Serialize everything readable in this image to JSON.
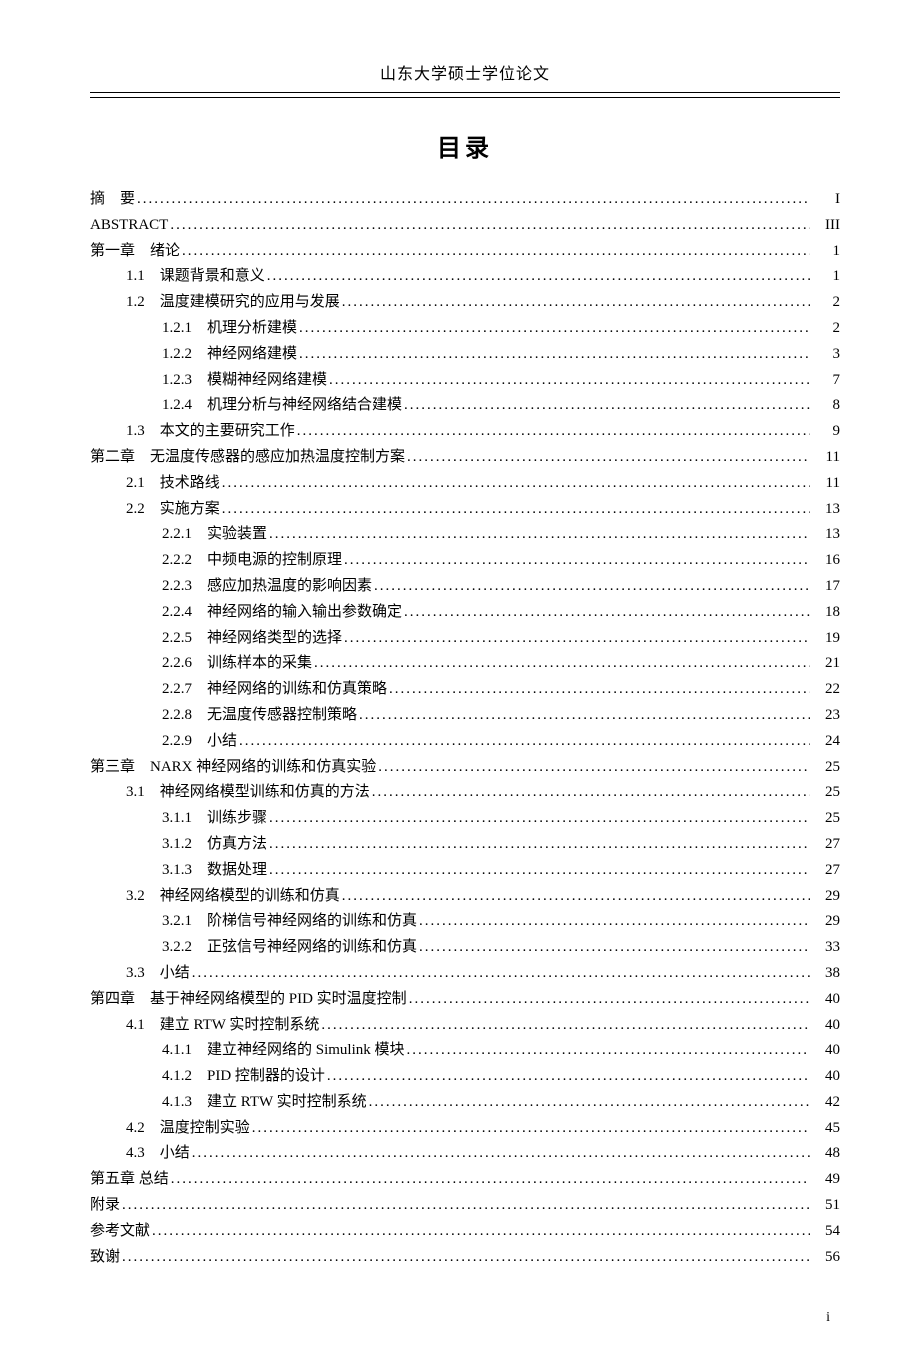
{
  "header": "山东大学硕士学位论文",
  "toc_title": "目录",
  "footer_page": "i",
  "entries": [
    {
      "indent": 0,
      "label": "摘　要",
      "page": "I"
    },
    {
      "indent": 0,
      "label": "ABSTRACT",
      "page": "III"
    },
    {
      "indent": 0,
      "label": "第一章　绪论",
      "page": "1"
    },
    {
      "indent": 1,
      "label": "1.1　课题背景和意义",
      "page": "1"
    },
    {
      "indent": 1,
      "label": "1.2　温度建模研究的应用与发展",
      "page": "2"
    },
    {
      "indent": 2,
      "label": "1.2.1　机理分析建模",
      "page": "2"
    },
    {
      "indent": 2,
      "label": "1.2.2　神经网络建模",
      "page": "3"
    },
    {
      "indent": 2,
      "label": "1.2.3　模糊神经网络建模",
      "page": "7"
    },
    {
      "indent": 2,
      "label": "1.2.4　机理分析与神经网络结合建模",
      "page": "8"
    },
    {
      "indent": 1,
      "label": "1.3　本文的主要研究工作",
      "page": "9"
    },
    {
      "indent": 0,
      "label": "第二章　无温度传感器的感应加热温度控制方案",
      "page": "11"
    },
    {
      "indent": 1,
      "label": "2.1　技术路线",
      "page": "11"
    },
    {
      "indent": 1,
      "label": "2.2　实施方案",
      "page": "13"
    },
    {
      "indent": 2,
      "label": "2.2.1　实验装置",
      "page": "13"
    },
    {
      "indent": 2,
      "label": "2.2.2　中频电源的控制原理",
      "page": "16"
    },
    {
      "indent": 2,
      "label": "2.2.3　感应加热温度的影响因素",
      "page": "17"
    },
    {
      "indent": 2,
      "label": "2.2.4　神经网络的输入输出参数确定",
      "page": "18"
    },
    {
      "indent": 2,
      "label": "2.2.5　神经网络类型的选择",
      "page": "19"
    },
    {
      "indent": 2,
      "label": "2.2.6　训练样本的采集",
      "page": "21"
    },
    {
      "indent": 2,
      "label": "2.2.7　神经网络的训练和仿真策略",
      "page": "22"
    },
    {
      "indent": 2,
      "label": "2.2.8　无温度传感器控制策略",
      "page": "23"
    },
    {
      "indent": 2,
      "label": "2.2.9　小结",
      "page": "24"
    },
    {
      "indent": 0,
      "label": "第三章　NARX 神经网络的训练和仿真实验",
      "page": "25"
    },
    {
      "indent": 1,
      "label": "3.1　神经网络模型训练和仿真的方法",
      "page": "25"
    },
    {
      "indent": 2,
      "label": "3.1.1　训练步骤",
      "page": "25"
    },
    {
      "indent": 2,
      "label": "3.1.2　仿真方法",
      "page": "27"
    },
    {
      "indent": 2,
      "label": "3.1.3　数据处理",
      "page": "27"
    },
    {
      "indent": 1,
      "label": "3.2　神经网络模型的训练和仿真",
      "page": "29"
    },
    {
      "indent": 2,
      "label": "3.2.1　阶梯信号神经网络的训练和仿真",
      "page": "29"
    },
    {
      "indent": 2,
      "label": "3.2.2　正弦信号神经网络的训练和仿真",
      "page": "33"
    },
    {
      "indent": 1,
      "label": "3.3　小结",
      "page": "38"
    },
    {
      "indent": 0,
      "label": "第四章　基于神经网络模型的 PID 实时温度控制",
      "page": "40"
    },
    {
      "indent": 1,
      "label": "4.1　建立 RTW 实时控制系统",
      "page": "40"
    },
    {
      "indent": 2,
      "label": "4.1.1　建立神经网络的 Simulink 模块",
      "page": "40"
    },
    {
      "indent": 2,
      "label": "4.1.2　PID 控制器的设计",
      "page": "40"
    },
    {
      "indent": 2,
      "label": "4.1.3　建立 RTW 实时控制系统",
      "page": "42"
    },
    {
      "indent": 1,
      "label": "4.2　温度控制实验",
      "page": "45"
    },
    {
      "indent": 1,
      "label": "4.3　小结",
      "page": "48"
    },
    {
      "indent": 0,
      "label": "第五章 总结",
      "page": "49"
    },
    {
      "indent": 0,
      "label": "附录",
      "page": "51"
    },
    {
      "indent": 0,
      "label": "参考文献",
      "page": "54"
    },
    {
      "indent": 0,
      "label": "致谢",
      "page": "56"
    }
  ]
}
